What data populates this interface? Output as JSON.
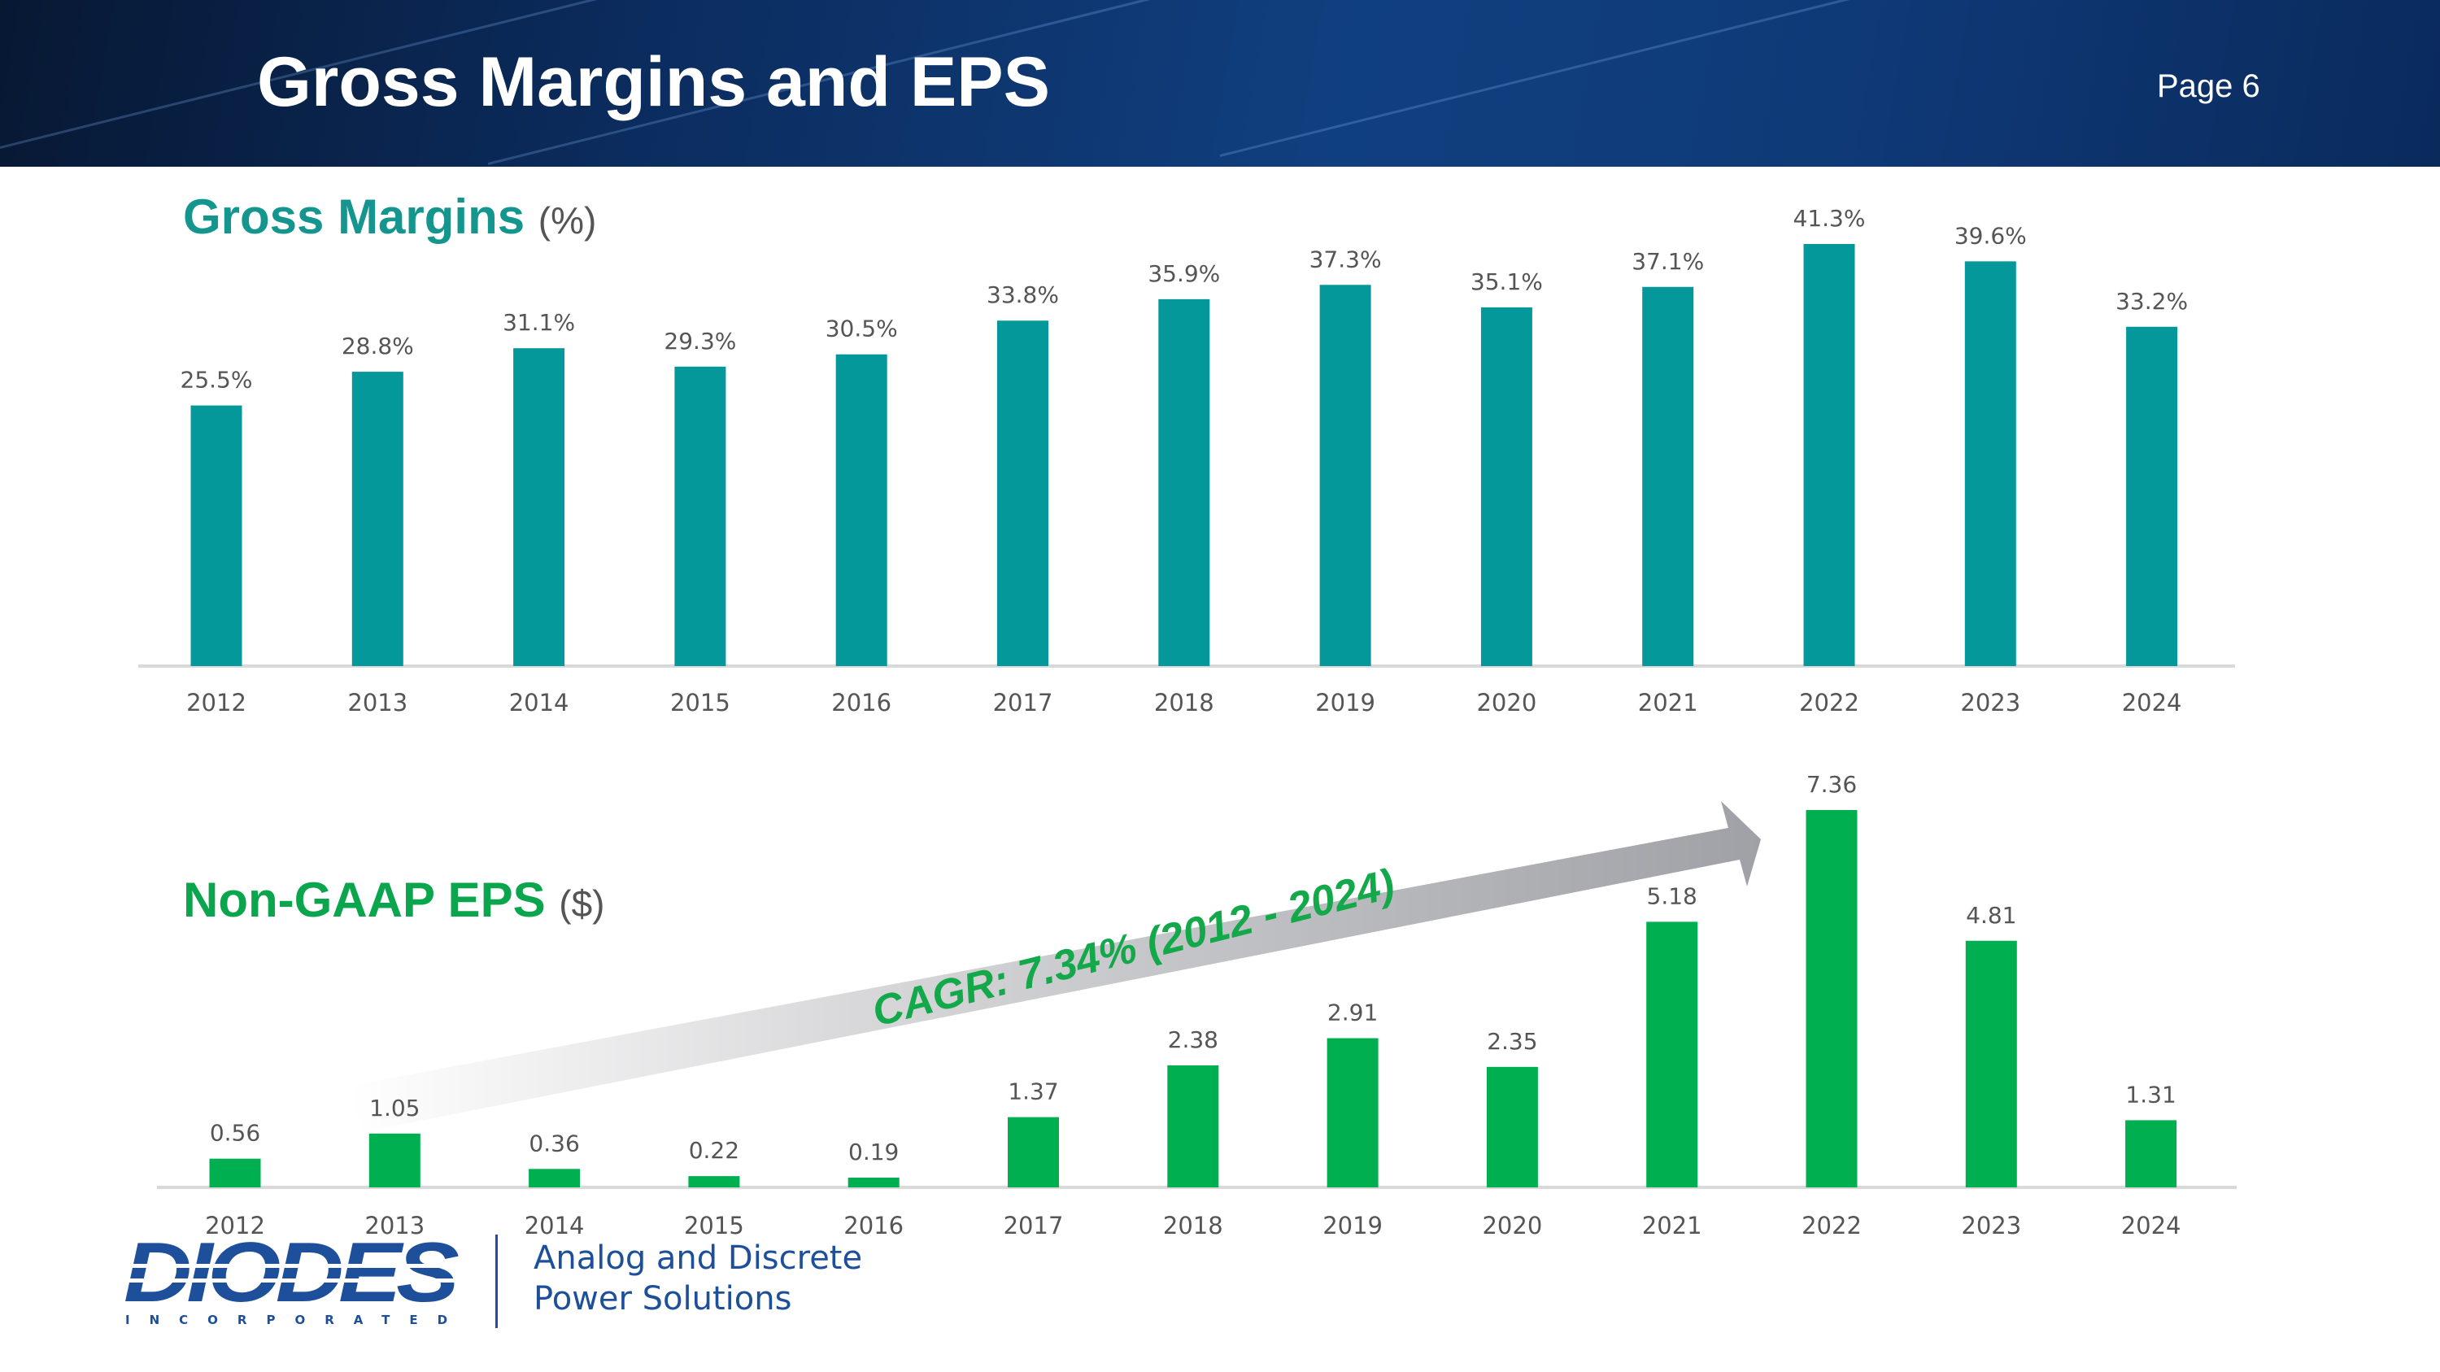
{
  "slide": {
    "title": "Gross Margins and EPS",
    "page": "Page 6"
  },
  "gross_margins": {
    "title": "Gross Margins",
    "unit": "(%)"
  },
  "eps": {
    "title": "Non-GAAP EPS",
    "unit": "($)",
    "cagr_label": "CAGR: 7.34% (2012 - 2024)"
  },
  "footer": {
    "company": "DIODES",
    "company_sub": "INCORPORATED",
    "tagline_line1": "Analog and Discrete",
    "tagline_line2": "Power Solutions"
  },
  "colors": {
    "gm_bar": "#04989a",
    "eps_bar": "#00b050",
    "gm_title": "#14968f",
    "eps_title": "#0aa54d",
    "brand_blue": "#1e4f9b"
  },
  "chart_data": [
    {
      "type": "bar",
      "title": "Gross Margins (%)",
      "categories": [
        "2012",
        "2013",
        "2014",
        "2015",
        "2016",
        "2017",
        "2018",
        "2019",
        "2020",
        "2021",
        "2022",
        "2023",
        "2024"
      ],
      "values": [
        25.5,
        28.8,
        31.1,
        29.3,
        30.5,
        33.8,
        35.9,
        37.3,
        35.1,
        37.1,
        41.3,
        39.6,
        33.2
      ],
      "labels": [
        "25.5%",
        "28.8%",
        "31.1%",
        "29.3%",
        "30.5%",
        "33.8%",
        "35.9%",
        "37.3%",
        "35.1%",
        "37.1%",
        "41.3%",
        "39.6%",
        "33.2%"
      ],
      "ylim": [
        0,
        41.3
      ],
      "xlabel": "",
      "ylabel": ""
    },
    {
      "type": "bar",
      "title": "Non-GAAP EPS ($)",
      "categories": [
        "2012",
        "2013",
        "2014",
        "2015",
        "2016",
        "2017",
        "2018",
        "2019",
        "2020",
        "2021",
        "2022",
        "2023",
        "2024"
      ],
      "values": [
        0.56,
        1.05,
        0.36,
        0.22,
        0.19,
        1.37,
        2.38,
        2.91,
        2.35,
        5.18,
        7.36,
        4.81,
        1.31
      ],
      "labels": [
        "0.56",
        "1.05",
        "0.36",
        "0.22",
        "0.19",
        "1.37",
        "2.38",
        "2.91",
        "2.35",
        "5.18",
        "7.36",
        "4.81",
        "1.31"
      ],
      "ylim": [
        0,
        7.36
      ],
      "xlabel": "",
      "ylabel": "",
      "annotation": "CAGR: 7.34% (2012 - 2024)"
    }
  ]
}
